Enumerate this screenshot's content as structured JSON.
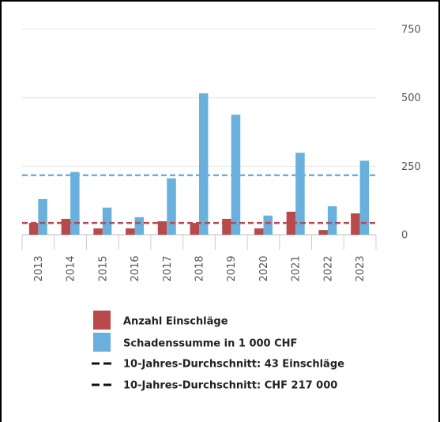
{
  "chart_data": {
    "type": "bar",
    "categories": [
      "2013",
      "2014",
      "2015",
      "2016",
      "2017",
      "2018",
      "2019",
      "2020",
      "2021",
      "2022",
      "2023"
    ],
    "series": [
      {
        "name": "Anzahl Einschläge",
        "color": "#b94a4c",
        "values": [
          43,
          58,
          23,
          23,
          49,
          43,
          58,
          23,
          84,
          17,
          78
        ]
      },
      {
        "name": "Schadenssumme in 1 000 CHF",
        "color": "#6ab0dc",
        "values": [
          130,
          229,
          99,
          64,
          206,
          516,
          438,
          70,
          299,
          104,
          270
        ]
      }
    ],
    "reference_lines": [
      {
        "name": "10-Jahres-Durchschnitt: 43 Einschläge",
        "value": 43,
        "color": "#b94a4c"
      },
      {
        "name": "10-Jahres-Durchschnitt: CHF 217 000",
        "value": 217,
        "color": "#6ab0dc"
      }
    ],
    "ylim": [
      0,
      750
    ],
    "yticks": [
      0,
      250,
      500,
      750
    ],
    "grid": true
  }
}
